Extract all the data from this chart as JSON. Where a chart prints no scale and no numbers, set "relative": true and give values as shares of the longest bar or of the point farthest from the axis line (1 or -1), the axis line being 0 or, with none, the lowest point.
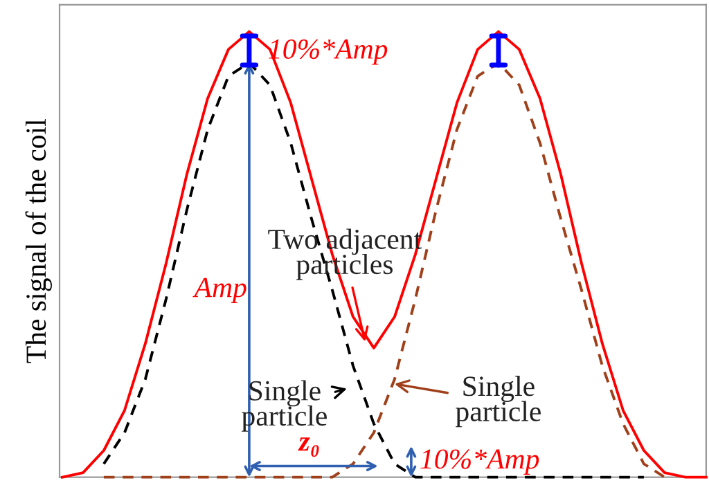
{
  "chart_data": {
    "type": "line",
    "relative": true,
    "ylabel": "The signal of the coil",
    "grid": false,
    "legend": false,
    "marker": "none",
    "categories": [
      null,
      null,
      null,
      null,
      null,
      null,
      null,
      null,
      null,
      null,
      null,
      null,
      null,
      null,
      null,
      null,
      null,
      null,
      null,
      null,
      null,
      null,
      null,
      null,
      null,
      null,
      null,
      null,
      null,
      null,
      null,
      null
    ],
    "series": [
      {
        "color": "#ff0000",
        "line_style": "solid",
        "values": [
          0,
          0.01,
          0.06,
          0.15,
          0.3,
          0.48,
          0.68,
          0.85,
          0.96,
          1.0,
          0.96,
          0.84,
          0.67,
          0.5,
          0.36,
          0.29,
          0.36,
          0.5,
          0.67,
          0.84,
          0.96,
          1.0,
          0.96,
          0.85,
          0.68,
          0.48,
          0.3,
          0.15,
          0.06,
          0.01,
          0,
          0
        ]
      },
      {
        "color": "#000000",
        "line_style": "dashed",
        "values": [
          null,
          null,
          0.03,
          0.1,
          0.22,
          0.4,
          0.6,
          0.78,
          0.9,
          0.93,
          0.88,
          0.75,
          0.58,
          0.42,
          0.25,
          0.12,
          0.03,
          0,
          0,
          0,
          0,
          0,
          0,
          0,
          0,
          0,
          0,
          0,
          0,
          null,
          null,
          null
        ]
      },
      {
        "color": "#a0401a",
        "line_style": "dashed",
        "values": [
          null,
          null,
          0,
          0,
          0,
          0,
          0,
          0,
          0,
          0,
          0,
          0,
          0,
          0,
          0.03,
          0.1,
          0.22,
          0.4,
          0.6,
          0.78,
          0.9,
          0.93,
          0.88,
          0.75,
          0.58,
          0.42,
          0.25,
          0.12,
          0.03,
          0,
          null,
          null
        ]
      }
    ],
    "annotations": [
      "10%*Amp",
      "Amp",
      "z₀",
      "10%*Amp",
      "Two adjacent\nparticles",
      "Single\nparticle",
      "Single\nparticle"
    ]
  }
}
